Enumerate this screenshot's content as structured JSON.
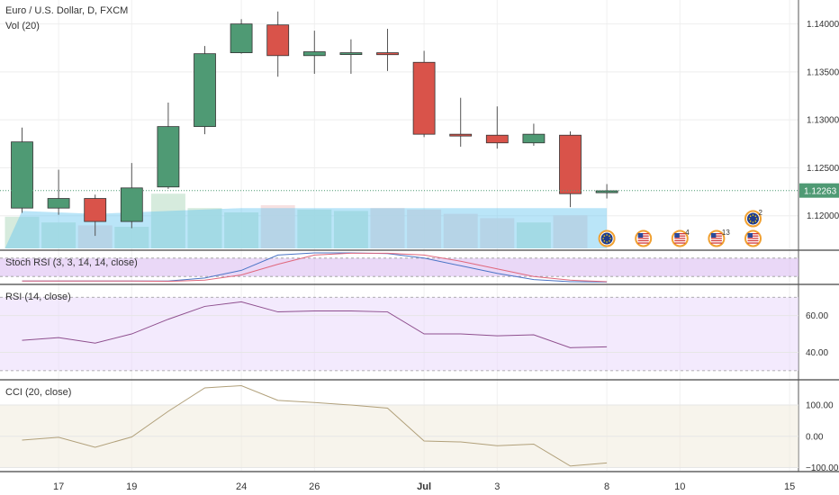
{
  "chart_data": [
    {
      "panel": "price",
      "type": "candlestick",
      "title": "Euro / U.S. Dollar, D, FXCM",
      "volume_label": "Vol (20)",
      "ylim": [
        1.1165,
        1.1425
      ],
      "y_ticks": [
        "1.14000",
        "1.13500",
        "1.13000",
        "1.12500",
        "1.12000"
      ],
      "last_price_label": "1.12263",
      "last_price": 1.12263,
      "candles": [
        {
          "o": 1.1208,
          "h": 1.1292,
          "l": 1.1203,
          "c": 1.1277
        },
        {
          "o": 1.1208,
          "h": 1.1248,
          "l": 1.1201,
          "c": 1.1218
        },
        {
          "o": 1.1218,
          "h": 1.1222,
          "l": 1.1179,
          "c": 1.1194
        },
        {
          "o": 1.1194,
          "h": 1.1255,
          "l": 1.1187,
          "c": 1.1229
        },
        {
          "o": 1.123,
          "h": 1.1318,
          "l": 1.1228,
          "c": 1.1293
        },
        {
          "o": 1.1293,
          "h": 1.1377,
          "l": 1.1285,
          "c": 1.1369
        },
        {
          "o": 1.137,
          "h": 1.1405,
          "l": 1.1369,
          "c": 1.14
        },
        {
          "o": 1.1399,
          "h": 1.1413,
          "l": 1.1345,
          "c": 1.1367
        },
        {
          "o": 1.1367,
          "h": 1.1393,
          "l": 1.1348,
          "c": 1.1371
        },
        {
          "o": 1.137,
          "h": 1.1384,
          "l": 1.1348,
          "c": 1.137
        },
        {
          "o": 1.137,
          "h": 1.1395,
          "l": 1.1351,
          "c": 1.1368
        },
        {
          "o": 1.136,
          "h": 1.1372,
          "l": 1.1282,
          "c": 1.1285
        },
        {
          "o": 1.1285,
          "h": 1.1323,
          "l": 1.1272,
          "c": 1.1284
        },
        {
          "o": 1.1284,
          "h": 1.1314,
          "l": 1.127,
          "c": 1.1276
        },
        {
          "o": 1.1276,
          "h": 1.1296,
          "l": 1.1273,
          "c": 1.1285
        },
        {
          "o": 1.1284,
          "h": 1.1288,
          "l": 1.1209,
          "c": 1.1223
        },
        {
          "o": 1.1224,
          "h": 1.1233,
          "l": 1.1218,
          "c": 1.1226
        }
      ],
      "volume": [
        22,
        18,
        16,
        15,
        38,
        28,
        25,
        30,
        27,
        26,
        28,
        27,
        24,
        21,
        18,
        23,
        0
      ],
      "volume_ma": [
        26,
        25,
        24,
        25,
        26,
        27,
        28,
        28,
        28,
        28,
        28,
        28,
        28,
        28,
        28,
        28,
        28
      ],
      "event_flags": [
        {
          "index": 16,
          "flag": "eu-flag",
          "label": ""
        },
        {
          "index": 17,
          "flag": "us-flag",
          "label": ""
        },
        {
          "index": 18,
          "flag": "us-flag",
          "label": "4"
        },
        {
          "index": 19,
          "flag": "us-flag",
          "label": "13"
        },
        {
          "index": 20,
          "flag": "us-flag",
          "label": ""
        },
        {
          "index": 20,
          "flag": "eu-flag",
          "label": "2",
          "row": "upper"
        }
      ],
      "colors": {
        "up": "#4f9a74",
        "down": "#d9534a",
        "grid": "#eeeeee"
      }
    },
    {
      "panel": "stoch_rsi",
      "type": "line",
      "title": "Stoch RSI (3, 3, 14, 14, close)",
      "ylim": [
        0,
        100
      ],
      "series": [
        {
          "color": "#4a74c6",
          "values": [
            5,
            5,
            5,
            5,
            5,
            15,
            40,
            90,
            97,
            97,
            95,
            80,
            55,
            30,
            10,
            3,
            2
          ]
        },
        {
          "color": "#e0677c",
          "values": [
            5,
            5,
            5,
            5,
            4,
            8,
            25,
            60,
            90,
            96,
            96,
            90,
            70,
            45,
            20,
            8,
            3
          ]
        }
      ],
      "bands": [
        20,
        80
      ]
    },
    {
      "panel": "rsi",
      "type": "line",
      "title": "RSI (14, close)",
      "ylim": [
        26,
        76
      ],
      "y_ticks": [
        60,
        40
      ],
      "y_tick_labels": [
        "60.00",
        "40.00"
      ],
      "series": [
        {
          "color": "#8e4f8e",
          "values": [
            46.5,
            48,
            45,
            50,
            58,
            65,
            67.5,
            62,
            62.5,
            62.5,
            62,
            50,
            50,
            49,
            49.5,
            42.5,
            43
          ]
        }
      ],
      "bands": [
        30,
        70
      ]
    },
    {
      "panel": "cci",
      "type": "line",
      "title": "CCI (20, close)",
      "ylim": [
        -110,
        175
      ],
      "y_ticks": [
        100,
        0,
        -100
      ],
      "y_tick_labels": [
        "100.00",
        "0.00",
        "−100.00"
      ],
      "series": [
        {
          "color": "#b1a07a",
          "values": [
            -12,
            -3,
            -35,
            -2,
            80,
            155,
            162,
            115,
            108,
            100,
            90,
            -15,
            -18,
            -30,
            -25,
            -95,
            -85
          ]
        }
      ],
      "bands": [
        -100,
        100
      ]
    }
  ],
  "x_axis": {
    "ticks": [
      {
        "index": 1,
        "label": "17"
      },
      {
        "index": 3,
        "label": "19"
      },
      {
        "index": 6,
        "label": "24"
      },
      {
        "index": 8,
        "label": "26"
      },
      {
        "index": 11,
        "label": "Jul"
      },
      {
        "index": 13,
        "label": "3"
      },
      {
        "index": 16,
        "label": "8"
      },
      {
        "index": 18,
        "label": "10"
      },
      {
        "index": 21,
        "label": "15"
      }
    ]
  }
}
